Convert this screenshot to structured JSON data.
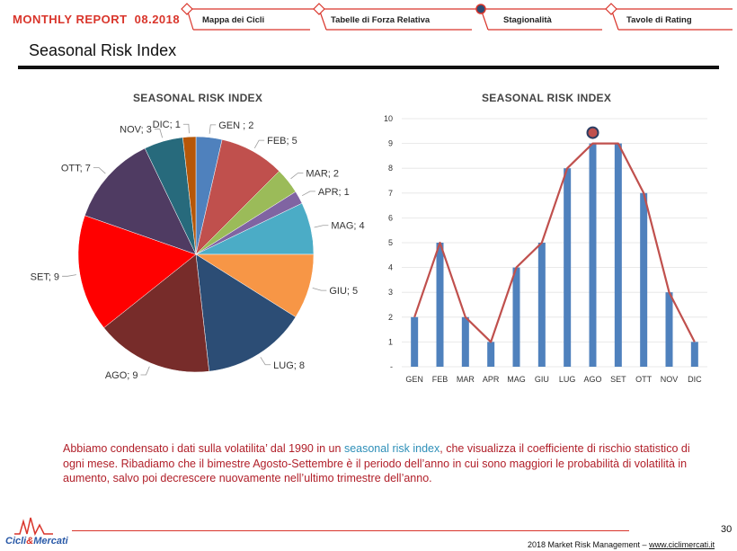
{
  "header": {
    "brand_label": "MONTHLY REPORT",
    "brand_date": "08.2018",
    "nav": [
      {
        "label": "Mappa dei Cicli",
        "active": false
      },
      {
        "label": "Tabelle di Forza Relativa",
        "active": false
      },
      {
        "label": "Stagionalità",
        "active": true
      },
      {
        "label": "Tavole di Rating",
        "active": false
      }
    ]
  },
  "page_title": "Seasonal Risk Index",
  "chart_data": [
    {
      "type": "pie",
      "title": "SEASONAL RISK INDEX",
      "labels": [
        "GEN",
        "FEB",
        "MAR",
        "APR",
        "MAG",
        "GIU",
        "LUG",
        "AGO",
        "SET",
        "OTT",
        "NOV",
        "DIC"
      ],
      "values": [
        2,
        5,
        2,
        1,
        4,
        5,
        8,
        9,
        9,
        7,
        3,
        1
      ],
      "data_labels": [
        "GEN ; 2",
        "FEB; 5",
        "MAR; 2",
        "APR; 1",
        "MAG; 4",
        "GIU; 5",
        "LUG; 8",
        "AGO; 9",
        "SET; 9",
        "OTT; 7",
        "NOV; 3",
        "DIC; 1"
      ],
      "colors": [
        "#4f81bd",
        "#c0504d",
        "#9bbb59",
        "#8064a2",
        "#4bacc6",
        "#f79646",
        "#2c4d75",
        "#772c2a",
        "#ff0000",
        "#4f3b62",
        "#276a7c",
        "#b65708"
      ]
    },
    {
      "type": "bar",
      "title": "SEASONAL RISK INDEX",
      "categories": [
        "GEN",
        "FEB",
        "MAR",
        "APR",
        "MAG",
        "GIU",
        "LUG",
        "AGO",
        "SET",
        "OTT",
        "NOV",
        "DIC"
      ],
      "values": [
        2,
        5,
        2,
        1,
        4,
        5,
        8,
        9,
        9,
        7,
        3,
        1
      ],
      "overlay_line": true,
      "ylim": [
        0,
        10
      ],
      "yticks": [
        "-",
        "1",
        "2",
        "3",
        "4",
        "5",
        "6",
        "7",
        "8",
        "9",
        "10"
      ],
      "bar_color": "#4f81bd",
      "line_color": "#c0504d",
      "highlight_category": "AGO"
    }
  ],
  "body": {
    "text_before": "Abbiamo condensato i dati sulla volatilita’ dal 1990 in un ",
    "highlight": "seasonal risk index",
    "text_after": ", che visualizza il coefficiente di rischio statistico di ogni mese. Ribadiamo  che il bimestre Agosto-Settembre è il periodo dell’anno in cui sono maggiori le probabilità di volatilità in aumento, salvo poi decrescere nuovamente nell’ultimo trimestre dell’anno."
  },
  "footer": {
    "page_number": "30",
    "text": "2018 Market Risk Management – ",
    "link": "www.ciclimercati.it",
    "logo_left": "Cicli",
    "logo_amp": "&",
    "logo_right": "Mercati"
  }
}
